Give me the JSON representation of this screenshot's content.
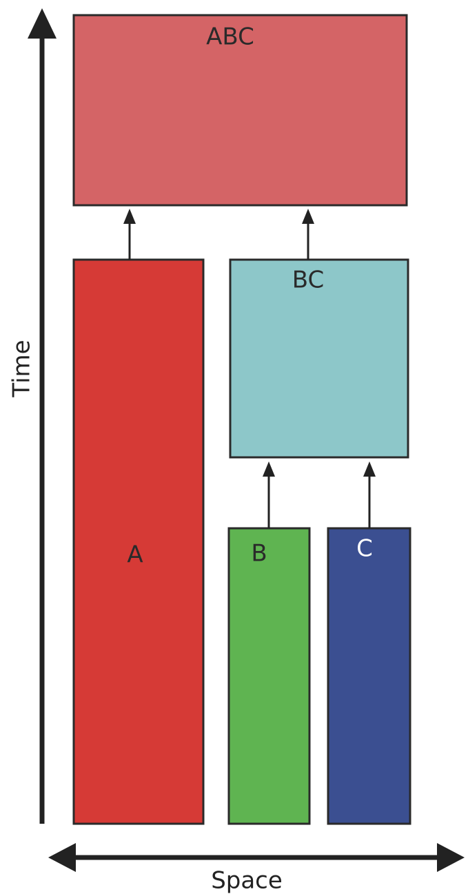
{
  "axes": {
    "vertical_label": "Time",
    "horizontal_label": "Space"
  },
  "boxes": {
    "abc": {
      "label": "ABC",
      "fill": "#d46466",
      "text_color": "#2a2a2a"
    },
    "a": {
      "label": "A",
      "fill": "#d63a36",
      "text_color": "#2a2a2a"
    },
    "bc": {
      "label": "BC",
      "fill": "#8dc7c9",
      "text_color": "#2a2a2a"
    },
    "b": {
      "label": "B",
      "fill": "#5fb451",
      "text_color": "#2a2a2a"
    },
    "c": {
      "label": "C",
      "fill": "#3b4f91",
      "text_color": "#ffffff"
    }
  },
  "colors": {
    "arrow": "#222222",
    "outline": "#2a2a2a"
  }
}
